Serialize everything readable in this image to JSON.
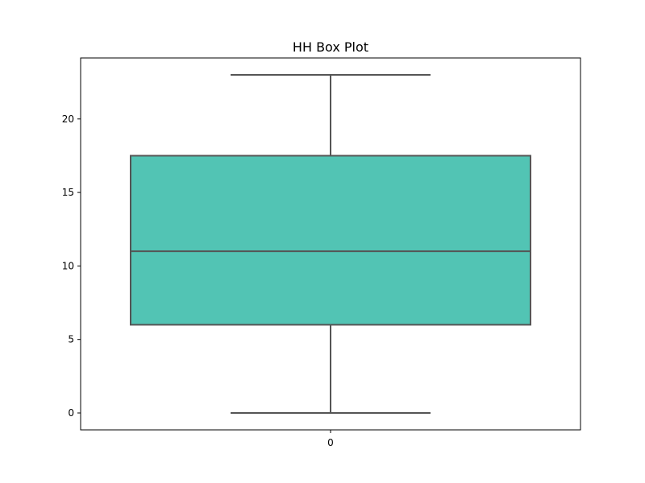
{
  "chart_data": {
    "type": "box",
    "title": "HH Box Plot",
    "xlabel": "",
    "ylabel": "",
    "categories": [
      "0"
    ],
    "boxes": [
      {
        "category": "0",
        "whisker_low": 0,
        "q1": 6,
        "median": 11,
        "q3": 17.5,
        "whisker_high": 23,
        "fill_color": "#52C4B4",
        "edge_color": "#555555"
      }
    ],
    "y_ticks": [
      0,
      5,
      10,
      15,
      20
    ],
    "ylim": [
      -1.15,
      24.15
    ],
    "grid": false,
    "legend": "none"
  }
}
